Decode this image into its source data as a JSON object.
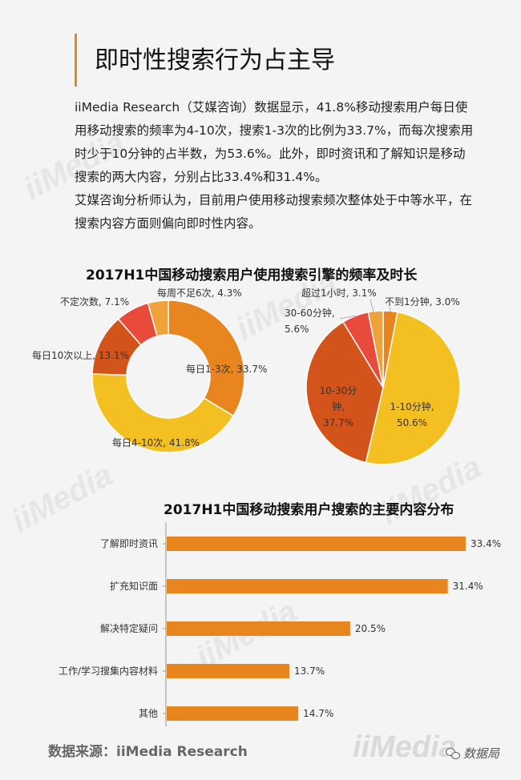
{
  "page": {
    "title": "即时性搜索行为占主导",
    "paragraphs": [
      "iiMedia Research（艾媒咨询）数据显示，41.8%移动搜索用户每日使用移动搜索的频率为4-10次，搜索1-3次的比例为33.7%，而每次搜索用时少于10分钟的占半数，为53.6%。此外，即时资讯和了解知识是移动搜索的两大内容，分别占比33.4%和31.4%。",
      "艾媒咨询分析师认为，目前用户使用移动搜索频次整体处于中等水平，在搜索内容方面则偏向即时性内容。"
    ],
    "chart1_title": "2017H1中国移动搜索用户使用搜索引擎的频率及时长",
    "chart2_title": "2017H1中国移动搜索用户搜索的主要内容分布",
    "source": "数据来源：iiMedia Research",
    "watermark": "iiMedia",
    "wechat_name": "数据局"
  },
  "colors": {
    "accent": "#e8851f",
    "donut": [
      "#e8851f",
      "#f4c021",
      "#d2541a",
      "#e84a3c",
      "#f0a23a"
    ],
    "pie": [
      "#e8851f",
      "#f4c021",
      "#d2541a",
      "#e84a3c",
      "#f0a23a"
    ],
    "bar": "#e8851f"
  },
  "chart_data": [
    {
      "type": "pie",
      "variant": "donut",
      "title": "",
      "slices": [
        {
          "label": "每日1-3次",
          "value": 33.7
        },
        {
          "label": "每日4-10次",
          "value": 41.8
        },
        {
          "label": "每日10次以上",
          "value": 13.1
        },
        {
          "label": "不定次数",
          "value": 7.1
        },
        {
          "label": "每周不足6次",
          "value": 4.3
        }
      ]
    },
    {
      "type": "pie",
      "title": "",
      "slices": [
        {
          "label": "不到1分钟",
          "value": 3.0
        },
        {
          "label": "1-10分钟",
          "value": 50.6
        },
        {
          "label": "10-30分钟",
          "value": 37.7
        },
        {
          "label": "30-60分钟",
          "value": 5.6
        },
        {
          "label": "超过1小时",
          "value": 3.1
        }
      ]
    },
    {
      "type": "bar",
      "orientation": "horizontal",
      "title": "2017H1中国移动搜索用户搜索的主要内容分布",
      "categories": [
        "了解即时资讯",
        "扩充知识面",
        "解决特定疑问",
        "工作/学习搜集内容材料",
        "其他"
      ],
      "values": [
        33.4,
        31.4,
        20.5,
        13.7,
        14.7
      ],
      "value_suffix": "%",
      "xlim": [
        0,
        33.4
      ]
    }
  ]
}
